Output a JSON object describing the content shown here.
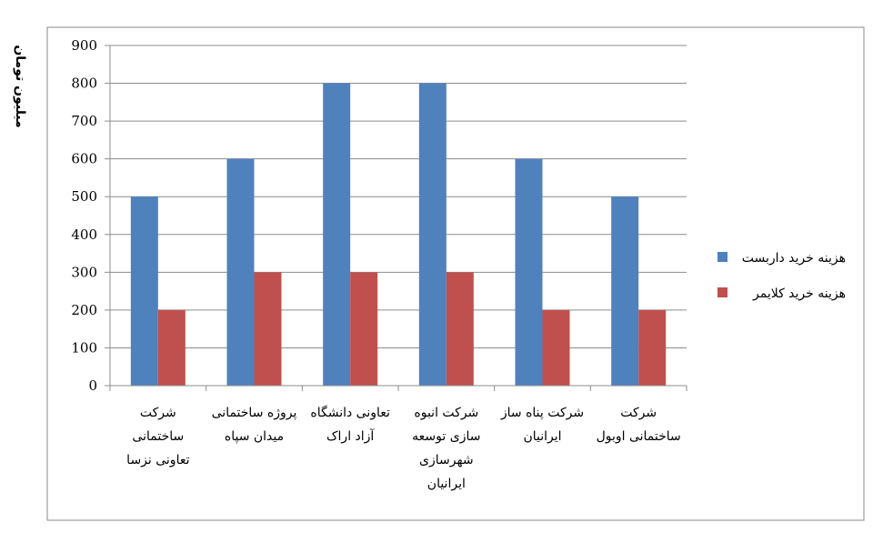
{
  "chart_data": {
    "type": "bar",
    "y_label": "میلیون تومان",
    "categories": [
      "شرکت\nساختمانی\nتعاونی نزسا",
      "پروژه ساختمانی\nمیدان سپاه",
      "تعاونی دانشگاه\nآزاد اراک",
      "شرکت انبوه\nسازی توسعه\nشهرسازی\nایرانیان",
      "شرکت پناه ساز\nایرانیان",
      "شرکت\nساختمانی اوبول"
    ],
    "series": [
      {
        "name": "هزینه خرید داربست",
        "color": "#4f81bd",
        "values": [
          500,
          600,
          800,
          800,
          600,
          500
        ]
      },
      {
        "name": "هزینه خرید کلایمر",
        "color": "#c0504d",
        "values": [
          200,
          300,
          300,
          300,
          200,
          200
        ]
      }
    ],
    "ylim": [
      0,
      900
    ],
    "yticks": [
      0,
      100,
      200,
      300,
      400,
      500,
      600,
      700,
      800,
      900
    ],
    "grid": true,
    "legend": "right"
  }
}
